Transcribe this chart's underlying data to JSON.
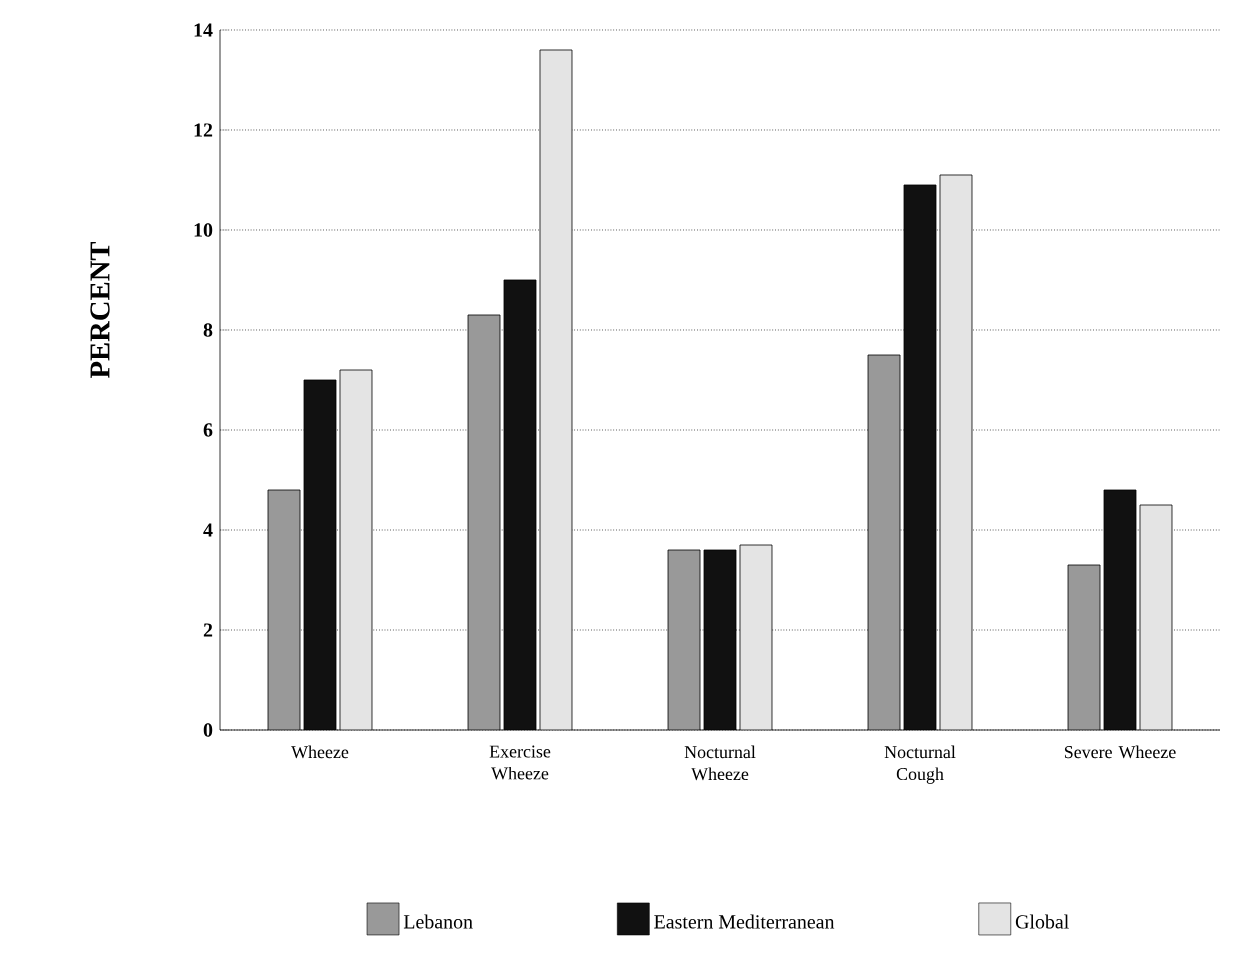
{
  "chart_data": {
    "type": "bar",
    "ylabel": "PERCENT",
    "categories": [
      "Wheeze",
      "Exercise Wheeze",
      "Nocturnal Wheeze",
      "Nocturnal Cough",
      "Severe Wheeze"
    ],
    "series": [
      {
        "name": "Lebanon",
        "color": "#999999",
        "values": [
          4.8,
          8.3,
          3.6,
          7.5,
          3.3
        ]
      },
      {
        "name": "Eastern Mediterranean",
        "color": "#111111",
        "values": [
          7.0,
          9.0,
          3.6,
          10.9,
          4.8
        ]
      },
      {
        "name": "Global",
        "color": "#e4e4e4",
        "values": [
          7.2,
          13.6,
          3.7,
          11.1,
          4.5
        ]
      }
    ],
    "ylim": [
      0,
      14
    ],
    "yticks": [
      0,
      2,
      4,
      6,
      8,
      10,
      12,
      14
    ],
    "grid": "y",
    "legend": "bottom"
  }
}
